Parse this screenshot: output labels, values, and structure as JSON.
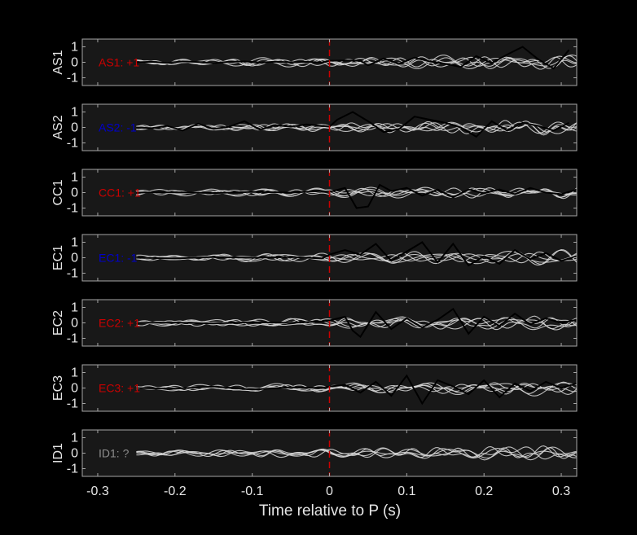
{
  "chart_data": {
    "type": "line",
    "xlabel": "Time relative to P (s)",
    "xlim": [
      -0.32,
      0.32
    ],
    "xticks": [
      -0.3,
      -0.2,
      -0.1,
      0,
      0.1,
      0.2,
      0.3
    ],
    "xtick_labels": [
      "-0.3",
      "-0.2",
      "-0.1",
      "0",
      "0.1",
      "0.2",
      "0.3"
    ],
    "ylim": [
      -1.5,
      1.5
    ],
    "yticks": [
      1,
      0,
      -1
    ],
    "ytick_labels": [
      "1",
      "0",
      "-1"
    ],
    "marker": {
      "x": 0,
      "style": "dashed",
      "color": "#cc0000"
    },
    "colors": {
      "background": "#000000",
      "axes_face": "#181818",
      "axes_edge": "#a6a6a6",
      "text": "#e6e6e6",
      "template_traces": "#d9d9d9",
      "stack_trace": "#000000",
      "positive": "#cc0000",
      "negative": "#0000cc",
      "unknown": "#8c8c8c"
    },
    "panels": [
      {
        "ylabel": "AS1",
        "label": "AS1: +1",
        "polarity": "+1",
        "color": "#cc0000",
        "stack": {
          "x": [
            -0.25,
            -0.23,
            -0.21,
            -0.19,
            -0.17,
            -0.15,
            -0.13,
            -0.11,
            -0.09,
            -0.07,
            -0.05,
            -0.03,
            -0.01,
            0.0,
            0.02,
            0.04,
            0.05,
            0.07,
            0.09,
            0.11,
            0.13,
            0.15,
            0.17,
            0.19,
            0.21,
            0.23,
            0.25,
            0.27,
            0.29,
            0.31
          ],
          "y": [
            0.0,
            0.03,
            -0.04,
            0.06,
            0.02,
            -0.05,
            0.03,
            0.06,
            -0.02,
            0.04,
            0.0,
            0.03,
            -0.02,
            0.1,
            0.12,
            0.1,
            -0.2,
            0.25,
            -0.1,
            0.3,
            0.05,
            -0.1,
            -0.3,
            0.4,
            -0.05,
            0.5,
            1.0,
            0.2,
            -0.4,
            0.8
          ]
        }
      },
      {
        "ylabel": "AS2",
        "label": "AS2: -1",
        "polarity": "-1",
        "color": "#0000cc",
        "stack": {
          "x": [
            -0.25,
            -0.23,
            -0.21,
            -0.19,
            -0.17,
            -0.15,
            -0.13,
            -0.11,
            -0.09,
            -0.07,
            -0.05,
            -0.03,
            -0.01,
            0.0,
            0.01,
            0.03,
            0.05,
            0.07,
            0.09,
            0.11,
            0.13,
            0.15,
            0.17,
            0.19,
            0.21,
            0.23,
            0.25,
            0.27,
            0.29,
            0.31
          ],
          "y": [
            0.0,
            -0.05,
            0.1,
            -0.2,
            0.25,
            -0.1,
            0.05,
            0.4,
            -0.15,
            0.15,
            0.05,
            0.2,
            0.1,
            0.05,
            0.5,
            1.0,
            0.4,
            -0.3,
            -0.1,
            0.7,
            0.5,
            0.3,
            0.0,
            -0.6,
            0.4,
            -0.2,
            0.3,
            0.1,
            -0.2,
            0.3
          ]
        }
      },
      {
        "ylabel": "CC1",
        "label": "CC1: +1",
        "polarity": "+1",
        "color": "#cc0000",
        "stack": {
          "x": [
            -0.25,
            -0.2,
            -0.15,
            -0.1,
            -0.05,
            -0.01,
            0.0,
            0.02,
            0.035,
            0.05,
            0.065,
            0.08,
            0.1,
            0.12,
            0.14,
            0.16,
            0.18,
            0.2,
            0.22,
            0.24,
            0.26,
            0.28,
            0.3,
            0.32
          ],
          "y": [
            0.0,
            0.02,
            -0.03,
            0.05,
            0.0,
            0.1,
            0.05,
            0.3,
            -1.0,
            -0.9,
            0.5,
            0.1,
            0.3,
            -0.2,
            0.2,
            -0.3,
            0.2,
            -0.05,
            0.2,
            -0.1,
            0.3,
            0.0,
            -0.1,
            0.2
          ]
        }
      },
      {
        "ylabel": "EC1",
        "label": "EC1: -1",
        "polarity": "-1",
        "color": "#0000cc",
        "stack": {
          "x": [
            -0.25,
            -0.2,
            -0.15,
            -0.1,
            -0.05,
            -0.01,
            0.0,
            0.02,
            0.04,
            0.06,
            0.08,
            0.1,
            0.12,
            0.14,
            0.16,
            0.18,
            0.2,
            0.22,
            0.24,
            0.26,
            0.28,
            0.3,
            0.32
          ],
          "y": [
            0.0,
            -0.05,
            0.05,
            0.0,
            0.05,
            -0.05,
            0.2,
            0.5,
            0.2,
            0.9,
            -0.2,
            0.4,
            1.0,
            -0.3,
            0.9,
            -0.5,
            0.1,
            -0.4,
            0.5,
            -0.1,
            0.3,
            -0.2,
            0.1
          ]
        }
      },
      {
        "ylabel": "EC2",
        "label": "EC2: +1",
        "polarity": "+1",
        "color": "#cc0000",
        "stack": {
          "x": [
            -0.25,
            -0.2,
            -0.15,
            -0.1,
            -0.05,
            -0.01,
            0.0,
            0.02,
            0.03,
            0.04,
            0.06,
            0.08,
            0.1,
            0.12,
            0.14,
            0.16,
            0.18,
            0.2,
            0.22,
            0.24,
            0.26,
            0.28,
            0.3,
            0.32
          ],
          "y": [
            0.0,
            0.02,
            -0.04,
            0.05,
            0.0,
            0.1,
            0.15,
            0.4,
            -0.5,
            -0.9,
            0.7,
            -0.4,
            0.3,
            -0.3,
            0.2,
            0.9,
            -0.7,
            0.4,
            -0.2,
            0.6,
            -0.1,
            0.3,
            0.0,
            0.2
          ]
        }
      },
      {
        "ylabel": "EC3",
        "label": "EC3: +1",
        "polarity": "+1",
        "color": "#cc0000",
        "stack": {
          "x": [
            -0.25,
            -0.2,
            -0.15,
            -0.1,
            -0.05,
            -0.01,
            0.0,
            0.02,
            0.04,
            0.06,
            0.08,
            0.1,
            0.12,
            0.14,
            0.16,
            0.18,
            0.2,
            0.22,
            0.24,
            0.26,
            0.28,
            0.3,
            0.32
          ],
          "y": [
            0.0,
            -0.05,
            0.1,
            -0.1,
            0.05,
            0.0,
            0.1,
            0.2,
            -0.3,
            0.4,
            -0.5,
            0.8,
            -1.0,
            0.5,
            0.1,
            -0.4,
            0.5,
            -0.6,
            0.3,
            -0.2,
            0.4,
            0.0,
            0.3
          ]
        }
      },
      {
        "ylabel": "ID1",
        "label": "ID1: ?",
        "polarity": "?",
        "color": "#8c8c8c",
        "stack": {
          "x": [],
          "y": []
        }
      }
    ]
  }
}
